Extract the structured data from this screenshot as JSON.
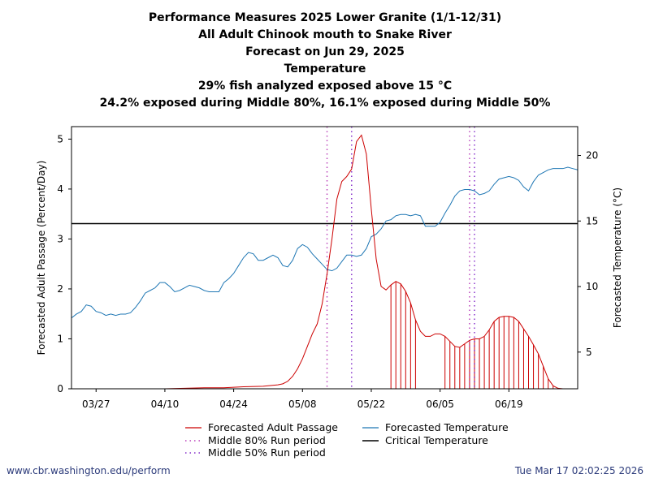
{
  "titles": [
    "Performance Measures 2025 Lower Granite (1/1-12/31)",
    "All Adult Chinook mouth to Snake River",
    "Forecast on Jun 29, 2025",
    "Temperature",
    "29% fish analyzed exposed above 15 °C",
    "24.2% exposed during Middle 80%, 16.1% exposed during Middle 50%"
  ],
  "footer": {
    "url": "www.cbr.washington.edu/perform",
    "timestamp": "Tue Mar 17 02:02:25 2026"
  },
  "legend": {
    "passage": "Forecasted Adult Passage",
    "temperature": "Forecasted Temperature",
    "middle80": "Middle 80% Run period",
    "critical": "Critical Temperature",
    "middle50": "Middle 50% Run period"
  },
  "colors": {
    "passage": "#cc0000",
    "temperature": "#1f77b4",
    "critical": "#000000",
    "middle80": "#bb44bb",
    "middle50": "#8833cc"
  },
  "chart_data": {
    "type": "line",
    "x_unit": "day of year 2025",
    "xlim": [
      81,
      184
    ],
    "x_ticks": [
      {
        "x": 86,
        "label": "03/27"
      },
      {
        "x": 100,
        "label": "04/10"
      },
      {
        "x": 114,
        "label": "04/24"
      },
      {
        "x": 128,
        "label": "05/08"
      },
      {
        "x": 142,
        "label": "05/22"
      },
      {
        "x": 156,
        "label": "06/05"
      },
      {
        "x": 170,
        "label": "06/19"
      }
    ],
    "ylabel": "Forecasted Adult Passage (Percent/Day)",
    "ylim": [
      0,
      5.25
    ],
    "y_ticks": [
      0,
      1,
      2,
      3,
      4,
      5
    ],
    "y2label": "Forecasted Temperature (°C)",
    "y2lim": [
      2.2,
      22.2
    ],
    "y2_ticks": [
      5,
      10,
      15,
      20
    ],
    "critical_temperature": 14.8,
    "middle80_run": [
      133,
      162
    ],
    "middle50_run": [
      138,
      163
    ],
    "series": [
      {
        "name": "Forecasted Adult Passage",
        "axis": "left",
        "x": [
          81,
          90,
          100,
          104,
          108,
          112,
          116,
          120,
          123,
          124,
          125,
          126,
          127,
          128,
          129,
          130,
          131,
          132,
          133,
          134,
          135,
          136,
          137,
          138,
          139,
          140,
          141,
          142,
          143,
          144,
          145,
          146,
          147,
          148,
          149,
          150,
          151,
          152,
          153,
          154,
          155,
          156,
          157,
          158,
          159,
          160,
          161,
          162,
          163,
          164,
          165,
          166,
          167,
          168,
          169,
          170,
          171,
          172,
          173,
          174,
          175,
          176,
          177,
          178,
          179,
          180,
          181,
          182,
          183,
          184
        ],
        "y": [
          0,
          0,
          0,
          0.01,
          0.02,
          0.02,
          0.04,
          0.05,
          0.08,
          0.1,
          0.15,
          0.25,
          0.4,
          0.6,
          0.85,
          1.1,
          1.3,
          1.7,
          2.3,
          3.0,
          3.8,
          4.15,
          4.25,
          4.4,
          4.95,
          5.08,
          4.7,
          3.6,
          2.6,
          2.05,
          1.98,
          2.08,
          2.15,
          2.1,
          1.95,
          1.72,
          1.38,
          1.15,
          1.05,
          1.05,
          1.1,
          1.1,
          1.05,
          0.95,
          0.85,
          0.83,
          0.9,
          0.97,
          1.0,
          1.0,
          1.05,
          1.18,
          1.35,
          1.43,
          1.45,
          1.45,
          1.43,
          1.35,
          1.2,
          1.05,
          0.88,
          0.7,
          0.45,
          0.2,
          0.06,
          0.01,
          0,
          0,
          0,
          0
        ]
      },
      {
        "name": "Forecasted Temperature",
        "axis": "right",
        "x": [
          81,
          82,
          83,
          84,
          85,
          86,
          87,
          88,
          89,
          90,
          91,
          92,
          93,
          94,
          95,
          96,
          97,
          98,
          99,
          100,
          101,
          102,
          103,
          104,
          105,
          106,
          107,
          108,
          109,
          110,
          111,
          112,
          113,
          114,
          115,
          116,
          117,
          118,
          119,
          120,
          121,
          122,
          123,
          124,
          125,
          126,
          127,
          128,
          129,
          130,
          131,
          132,
          133,
          134,
          135,
          136,
          137,
          138,
          139,
          140,
          141,
          142,
          143,
          144,
          145,
          146,
          147,
          148,
          149,
          150,
          151,
          152,
          153,
          154,
          155,
          156,
          157,
          158,
          159,
          160,
          161,
          162,
          163,
          164,
          165,
          166,
          167,
          168,
          169,
          170,
          171,
          172,
          173,
          174,
          175,
          176,
          177,
          178,
          179,
          180,
          181,
          182,
          183,
          184
        ],
        "y": [
          7.6,
          7.9,
          8.1,
          8.6,
          8.5,
          8.1,
          8.0,
          7.8,
          7.9,
          7.8,
          7.9,
          7.9,
          8.0,
          8.4,
          8.9,
          9.5,
          9.7,
          9.9,
          10.3,
          10.3,
          10.0,
          9.6,
          9.7,
          9.9,
          10.1,
          10.0,
          9.9,
          9.7,
          9.6,
          9.6,
          9.6,
          10.3,
          10.6,
          11.0,
          11.6,
          12.2,
          12.6,
          12.5,
          12.0,
          12.0,
          12.2,
          12.4,
          12.2,
          11.6,
          11.5,
          12.0,
          12.9,
          13.2,
          13.0,
          12.5,
          12.1,
          11.7,
          11.3,
          11.2,
          11.4,
          11.9,
          12.4,
          12.4,
          12.3,
          12.4,
          12.9,
          13.8,
          14.0,
          14.4,
          15.0,
          15.1,
          15.4,
          15.5,
          15.5,
          15.4,
          15.5,
          15.4,
          14.6,
          14.6,
          14.6,
          14.9,
          15.6,
          16.2,
          16.9,
          17.3,
          17.4,
          17.4,
          17.3,
          17.0,
          17.1,
          17.3,
          17.8,
          18.2,
          18.3,
          18.4,
          18.3,
          18.1,
          17.6,
          17.3,
          18.0,
          18.5,
          18.7,
          18.9,
          19.0,
          19.0,
          19.0,
          19.1,
          19.0,
          18.9
        ]
      }
    ],
    "exposure_shading": {
      "description": "vertical hatch under passage curve where temperature exceeds critical",
      "ranges": [
        [
          146,
          151.5
        ],
        [
          157,
          184
        ]
      ]
    }
  }
}
